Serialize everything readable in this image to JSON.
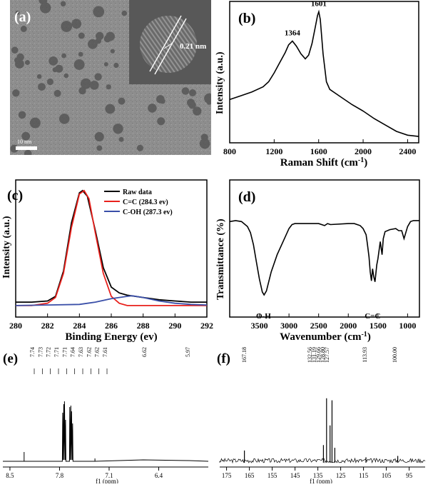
{
  "panels": {
    "a": {
      "letter": "(a)",
      "lattice_label": "0.21 nm",
      "scale_label": "10 nm"
    },
    "b": {
      "letter": "(b)"
    },
    "c": {
      "letter": "(c)"
    },
    "d": {
      "letter": "(d)"
    },
    "e": {
      "letter": "(e)"
    },
    "f": {
      "letter": "(f)"
    }
  },
  "colors": {
    "raw": "#000000",
    "cc": "#e8211c",
    "coh": "#3a4fa8",
    "tem_bg": "#8e8e8e"
  },
  "chart_data": [
    {
      "id": "b",
      "type": "line",
      "xlabel": "Raman Shift (cm",
      "xlabel_sup": "-1",
      "xlabel_end": ")",
      "ylabel": "Intensity (a.u.)",
      "xlim": [
        800,
        2500
      ],
      "xticks": [
        "800",
        "1200",
        "1600",
        "2000",
        "2400"
      ],
      "annotations": [
        {
          "x": 1364,
          "label": "1364"
        },
        {
          "x": 1601,
          "label": "1601"
        }
      ],
      "series": [
        {
          "x": [
            800,
            900,
            1000,
            1100,
            1150,
            1200,
            1250,
            1300,
            1330,
            1364,
            1400,
            1440,
            1480,
            1510,
            1540,
            1570,
            1590,
            1601,
            1615,
            1640,
            1670,
            1700,
            1800,
            1900,
            2000,
            2100,
            2200,
            2300,
            2400,
            2500
          ],
          "y": [
            0.34,
            0.37,
            0.4,
            0.44,
            0.48,
            0.55,
            0.63,
            0.71,
            0.77,
            0.8,
            0.76,
            0.7,
            0.66,
            0.69,
            0.78,
            0.91,
            1.0,
            1.03,
            0.97,
            0.7,
            0.48,
            0.42,
            0.36,
            0.3,
            0.25,
            0.19,
            0.14,
            0.09,
            0.06,
            0.05
          ]
        }
      ]
    },
    {
      "id": "c",
      "type": "line",
      "xlabel": "Binding Energy (ev)",
      "ylabel": "Intensity (a.u.)",
      "xlim": [
        280,
        292
      ],
      "xticks": [
        "280",
        "282",
        "284",
        "286",
        "288",
        "290",
        "292"
      ],
      "legend_position": "top-right",
      "series": [
        {
          "name": "Raw data",
          "color_key": "raw",
          "x": [
            280,
            281,
            282,
            282.5,
            283,
            283.5,
            284,
            284.2,
            284.5,
            285,
            285.5,
            286,
            286.5,
            287,
            287.5,
            288,
            288.5,
            289,
            290,
            291,
            292
          ],
          "y": [
            0.03,
            0.03,
            0.04,
            0.08,
            0.3,
            0.72,
            0.98,
            1.0,
            0.95,
            0.65,
            0.33,
            0.16,
            0.11,
            0.09,
            0.08,
            0.07,
            0.06,
            0.05,
            0.04,
            0.03,
            0.03
          ]
        },
        {
          "name": "C=C (284.3 ev)",
          "color_key": "cc",
          "x": [
            280,
            281,
            282,
            282.5,
            283,
            283.5,
            284,
            284.3,
            284.6,
            285,
            285.5,
            286,
            286.5,
            287,
            288,
            289,
            290,
            291,
            292
          ],
          "y": [
            0.0,
            0.0,
            0.02,
            0.07,
            0.28,
            0.68,
            0.97,
            1.0,
            0.93,
            0.63,
            0.28,
            0.08,
            0.02,
            0.0,
            0.0,
            0.0,
            0.0,
            0.0,
            0.0
          ]
        },
        {
          "name": "C-OH (287.3 ev)",
          "color_key": "coh",
          "x": [
            280,
            282,
            284,
            285,
            286,
            287,
            287.3,
            288,
            289,
            290,
            291,
            292
          ],
          "y": [
            0.0,
            0.005,
            0.01,
            0.03,
            0.06,
            0.08,
            0.085,
            0.07,
            0.04,
            0.02,
            0.01,
            0.005
          ]
        }
      ]
    },
    {
      "id": "d",
      "type": "line",
      "xlabel": "Wavenumber (cm",
      "xlabel_sup": "-1",
      "xlabel_end": ")",
      "ylabel": "Transmittance (%)",
      "xlim": [
        4000,
        800
      ],
      "xticks": [
        "3500",
        "3000",
        "2500",
        "2000",
        "1500",
        "1000"
      ],
      "annotations": [
        {
          "x": 3430,
          "label": "O-H"
        },
        {
          "x": 1590,
          "label": "C=C"
        }
      ],
      "series": [
        {
          "x": [
            4000,
            3900,
            3800,
            3700,
            3650,
            3600,
            3550,
            3500,
            3450,
            3420,
            3380,
            3300,
            3200,
            3100,
            3000,
            2950,
            2900,
            2500,
            2400,
            2350,
            2300,
            2000,
            1900,
            1800,
            1750,
            1700,
            1680,
            1650,
            1630,
            1610,
            1590,
            1570,
            1550,
            1520,
            1500,
            1460,
            1430,
            1410,
            1380,
            1300,
            1200,
            1150,
            1100,
            1060,
            1000,
            950,
            900,
            850,
            800
          ],
          "y": [
            0.95,
            0.96,
            0.95,
            0.9,
            0.84,
            0.72,
            0.55,
            0.38,
            0.25,
            0.22,
            0.26,
            0.45,
            0.62,
            0.75,
            0.88,
            0.92,
            0.93,
            0.93,
            0.91,
            0.93,
            0.92,
            0.93,
            0.93,
            0.91,
            0.88,
            0.82,
            0.74,
            0.6,
            0.45,
            0.36,
            0.48,
            0.4,
            0.35,
            0.52,
            0.58,
            0.75,
            0.62,
            0.78,
            0.85,
            0.87,
            0.88,
            0.86,
            0.86,
            0.78,
            0.9,
            0.95,
            0.96,
            0.96,
            0.96
          ]
        }
      ]
    },
    {
      "id": "e",
      "type": "line",
      "xlabel": "f1 (ppm)",
      "xlim": [
        8.6,
        5.7
      ],
      "xticks": [
        "8.5",
        "7.8",
        "7.1",
        "6.4"
      ],
      "peak_labels": [
        "7.74",
        "7.73",
        "7.72",
        "7.71",
        "7.71",
        "7.64",
        "7.63",
        "7.62",
        "7.62",
        "7.61",
        "6.62",
        "5.97"
      ],
      "series": [
        {
          "x": [
            8.6,
            8.3,
            8.3,
            8.3,
            7.76,
            7.755,
            7.75,
            7.74,
            7.735,
            7.73,
            7.72,
            7.715,
            7.71,
            7.7,
            7.66,
            7.655,
            7.65,
            7.64,
            7.635,
            7.63,
            7.62,
            7.615,
            7.61,
            7.5,
            7.3,
            7.3,
            7.3,
            6.62,
            5.97,
            5.7
          ],
          "y": [
            0.02,
            0.02,
            0.15,
            0.02,
            0.02,
            0.7,
            0.04,
            0.82,
            0.04,
            0.86,
            0.04,
            0.6,
            0.02,
            0.02,
            0.02,
            0.78,
            0.04,
            0.8,
            0.04,
            0.72,
            0.04,
            0.55,
            0.02,
            0.02,
            0.02,
            0.06,
            0.02,
            0.04,
            0.03,
            0.02
          ]
        }
      ]
    },
    {
      "id": "f",
      "type": "line",
      "xlabel": "f1 (ppm)",
      "xlim": [
        178,
        88
      ],
      "xticks": [
        "175",
        "165",
        "155",
        "145",
        "135",
        "125",
        "115",
        "105",
        "95"
      ],
      "peak_labels": [
        "167.18",
        "132.56",
        "131.19",
        "129.66",
        "128.80",
        "127.57",
        "113.93",
        "100.00"
      ],
      "series": [
        {
          "x": [
            167.18,
            132.56,
            131.19,
            129.66,
            128.8,
            127.57,
            113.93,
            100.0
          ],
          "y": [
            0.18,
            0.26,
            0.95,
            0.55,
            0.92,
            0.22,
            0.08,
            0.1
          ]
        }
      ]
    }
  ]
}
